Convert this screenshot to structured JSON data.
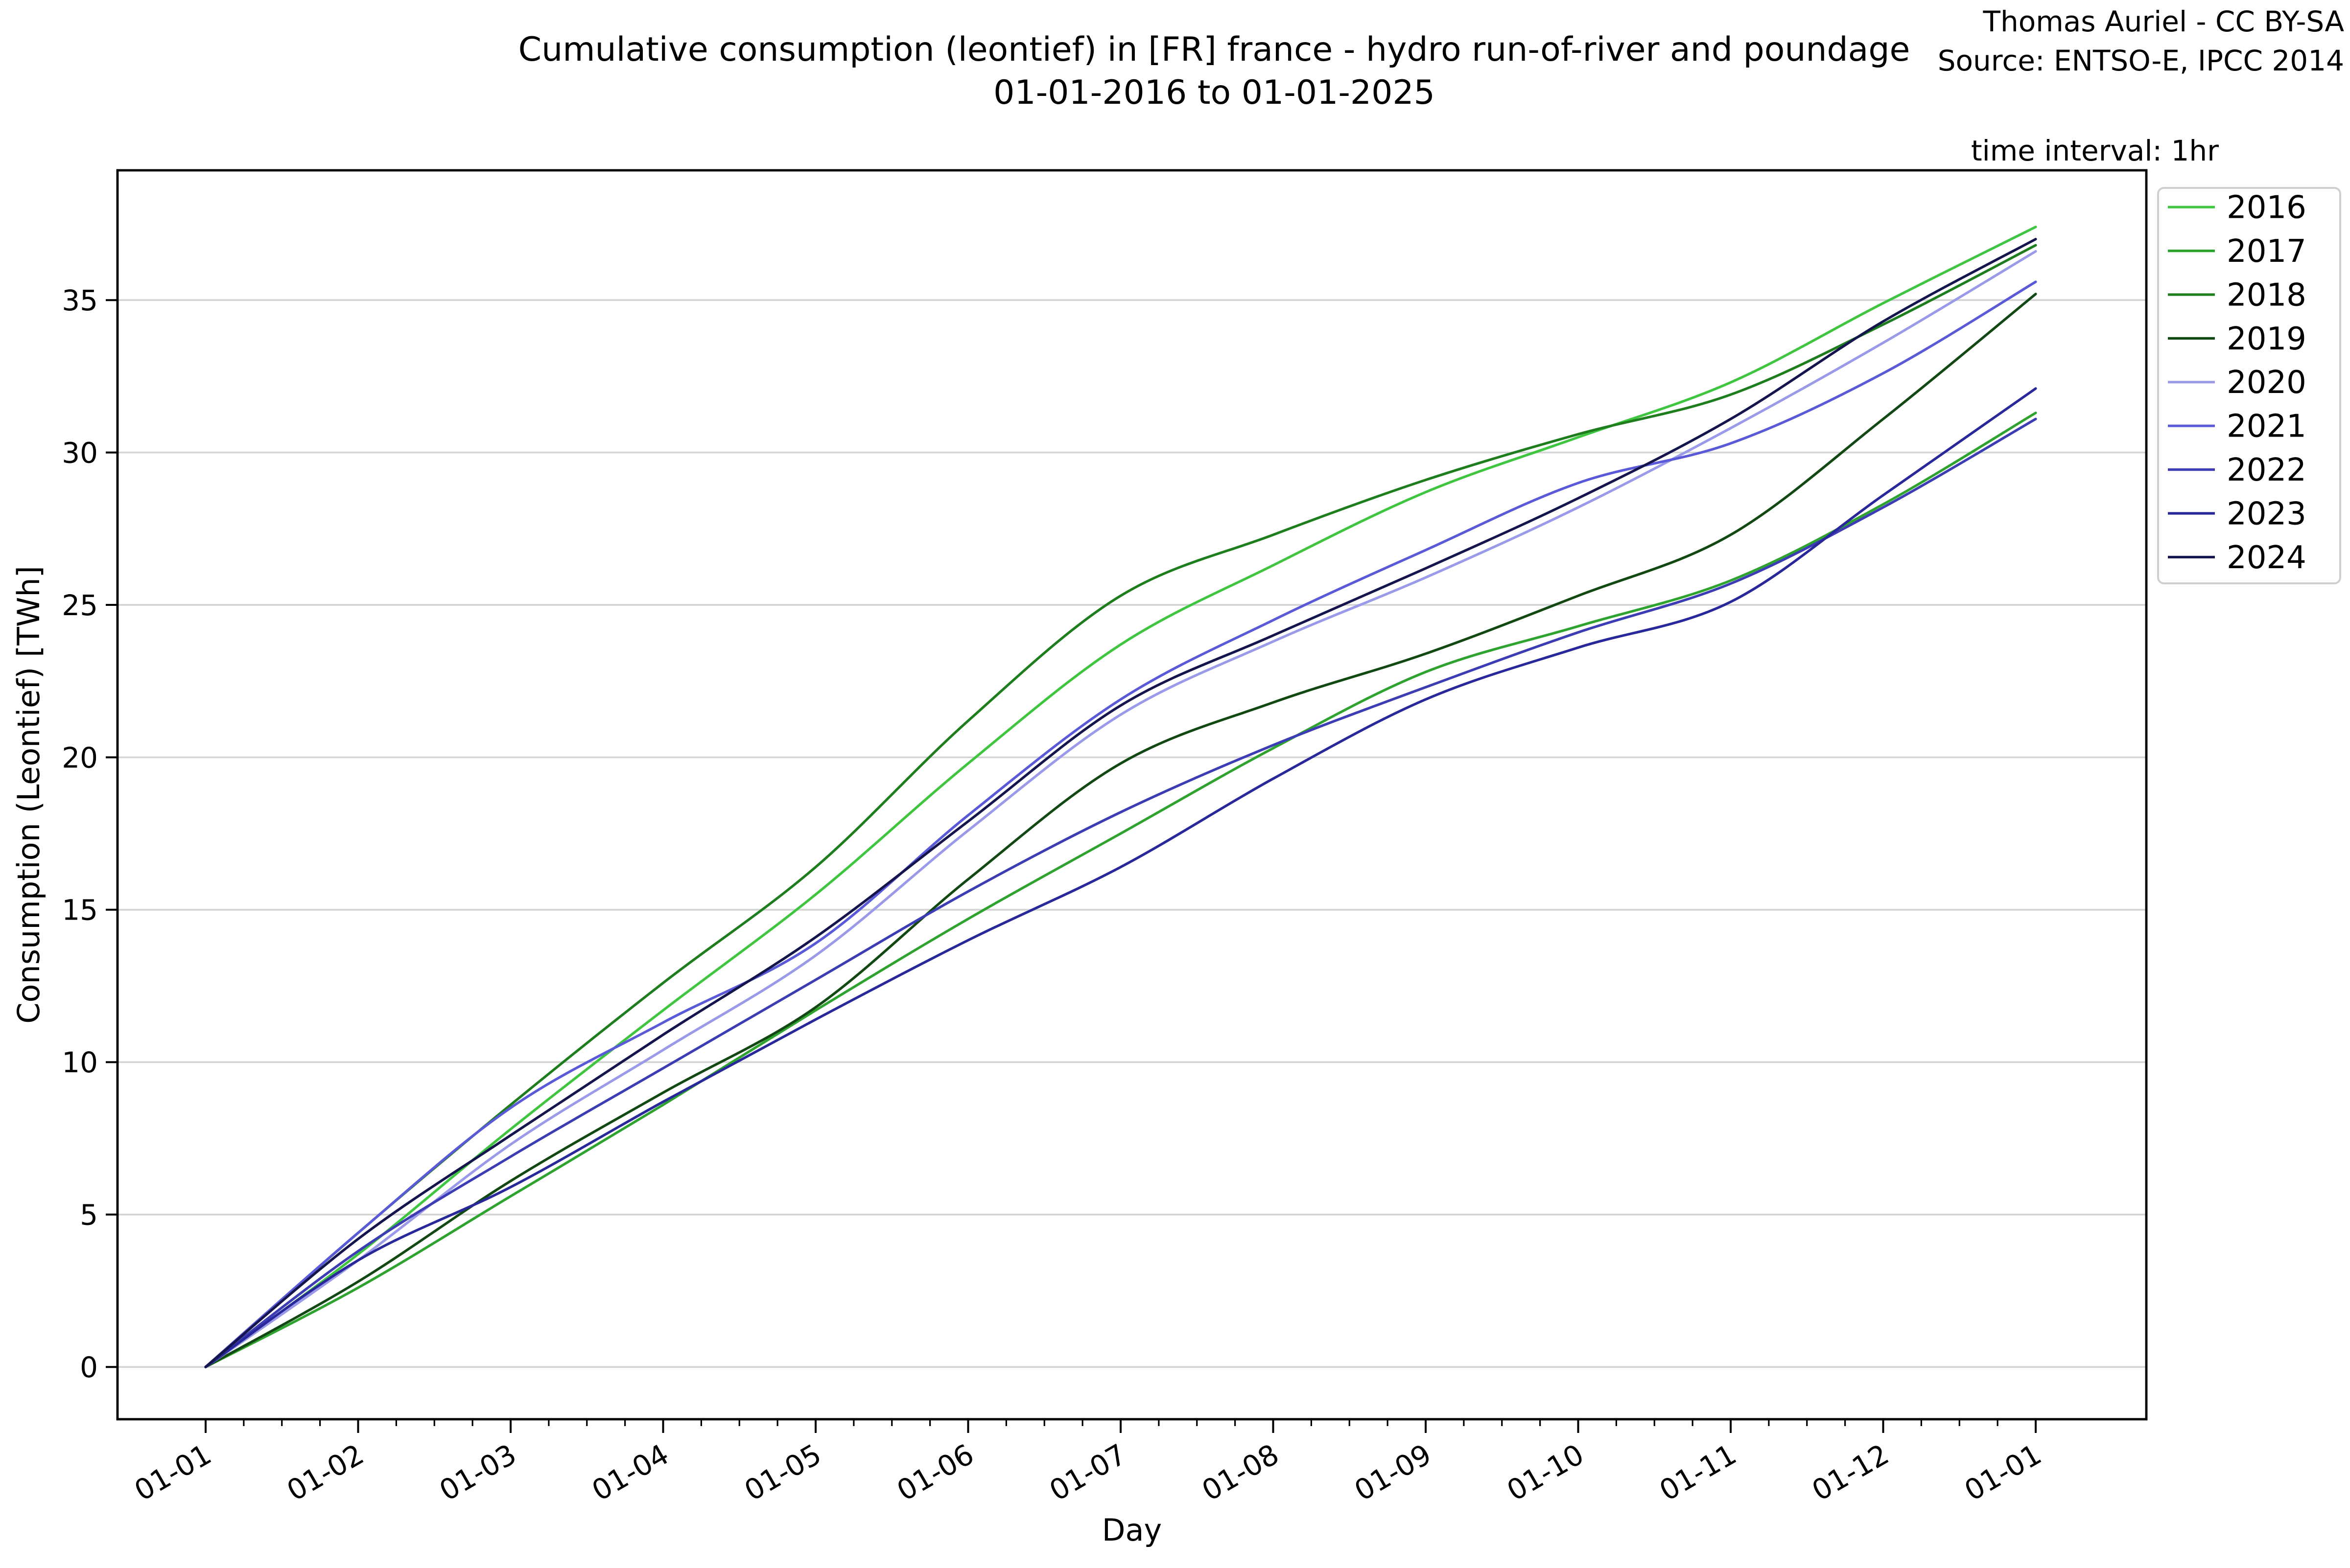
{
  "header": {
    "title_line1": "Cumulative consumption (leontief) in [FR] france - hydro run-of-river and poundage",
    "title_line2": "01-01-2016 to 01-01-2025",
    "credit": "Thomas Auriel - CC BY-SA",
    "source": "Source: ENTSO-E, IPCC 2014",
    "time_interval": "time interval: 1hr"
  },
  "chart_data": {
    "type": "line",
    "title": "Cumulative consumption (leontief) in [FR] france - hydro run-of-river and poundage 01-01-2016 to 01-01-2025",
    "xlabel": "Day",
    "ylabel": "Consumption (Leontief) [TWh]",
    "x_tick_labels": [
      "01-01",
      "01-02",
      "01-03",
      "01-04",
      "01-05",
      "01-06",
      "01-07",
      "01-08",
      "01-09",
      "01-10",
      "01-11",
      "01-12",
      "01-01"
    ],
    "y_ticks": [
      0,
      5,
      10,
      15,
      20,
      25,
      30,
      35
    ],
    "ylim": [
      -1.7,
      39.3
    ],
    "grid": "horizontal",
    "legend_position": "outside-upper-right",
    "axis_color": "#000000",
    "grid_color": "#d4d4d4",
    "series": [
      {
        "name": "2016",
        "color": "#3fc53f",
        "values": [
          0,
          3.7,
          7.8,
          11.7,
          15.5,
          19.8,
          23.7,
          26.3,
          28.7,
          30.5,
          32.3,
          34.9,
          37.4
        ]
      },
      {
        "name": "2017",
        "color": "#2fa32f",
        "values": [
          0,
          2.6,
          5.6,
          8.6,
          11.7,
          14.7,
          17.5,
          20.3,
          22.8,
          24.3,
          25.8,
          28.3,
          31.3
        ]
      },
      {
        "name": "2018",
        "color": "#1e7e1e",
        "values": [
          0,
          4.4,
          8.6,
          12.6,
          16.4,
          21.2,
          25.3,
          27.3,
          29.1,
          30.6,
          31.9,
          34.2,
          36.8
        ]
      },
      {
        "name": "2019",
        "color": "#124912",
        "values": [
          0,
          2.8,
          6.1,
          9.0,
          11.8,
          16.0,
          19.8,
          21.8,
          23.4,
          25.3,
          27.3,
          31.1,
          35.2
        ]
      },
      {
        "name": "2020",
        "color": "#9a9ae8",
        "values": [
          0,
          3.5,
          7.3,
          10.4,
          13.5,
          17.6,
          21.4,
          23.8,
          25.9,
          28.2,
          30.8,
          33.6,
          36.6
        ]
      },
      {
        "name": "2021",
        "color": "#5a5ad8",
        "values": [
          0,
          4.4,
          8.5,
          11.3,
          13.9,
          18.1,
          21.9,
          24.5,
          26.8,
          29.0,
          30.3,
          32.6,
          35.6
        ]
      },
      {
        "name": "2022",
        "color": "#3c3cb4",
        "values": [
          0,
          3.8,
          6.9,
          9.8,
          12.7,
          15.6,
          18.2,
          20.4,
          22.3,
          24.1,
          25.7,
          28.2,
          31.1
        ]
      },
      {
        "name": "2023",
        "color": "#28289b",
        "values": [
          0,
          3.5,
          5.9,
          8.7,
          11.4,
          14.0,
          16.4,
          19.3,
          21.9,
          23.6,
          25.1,
          28.6,
          32.1
        ]
      },
      {
        "name": "2024",
        "color": "#15154e",
        "values": [
          0,
          4.2,
          7.6,
          10.9,
          14.1,
          17.9,
          21.7,
          24.0,
          26.2,
          28.5,
          31.1,
          34.3,
          37.0
        ]
      }
    ]
  }
}
